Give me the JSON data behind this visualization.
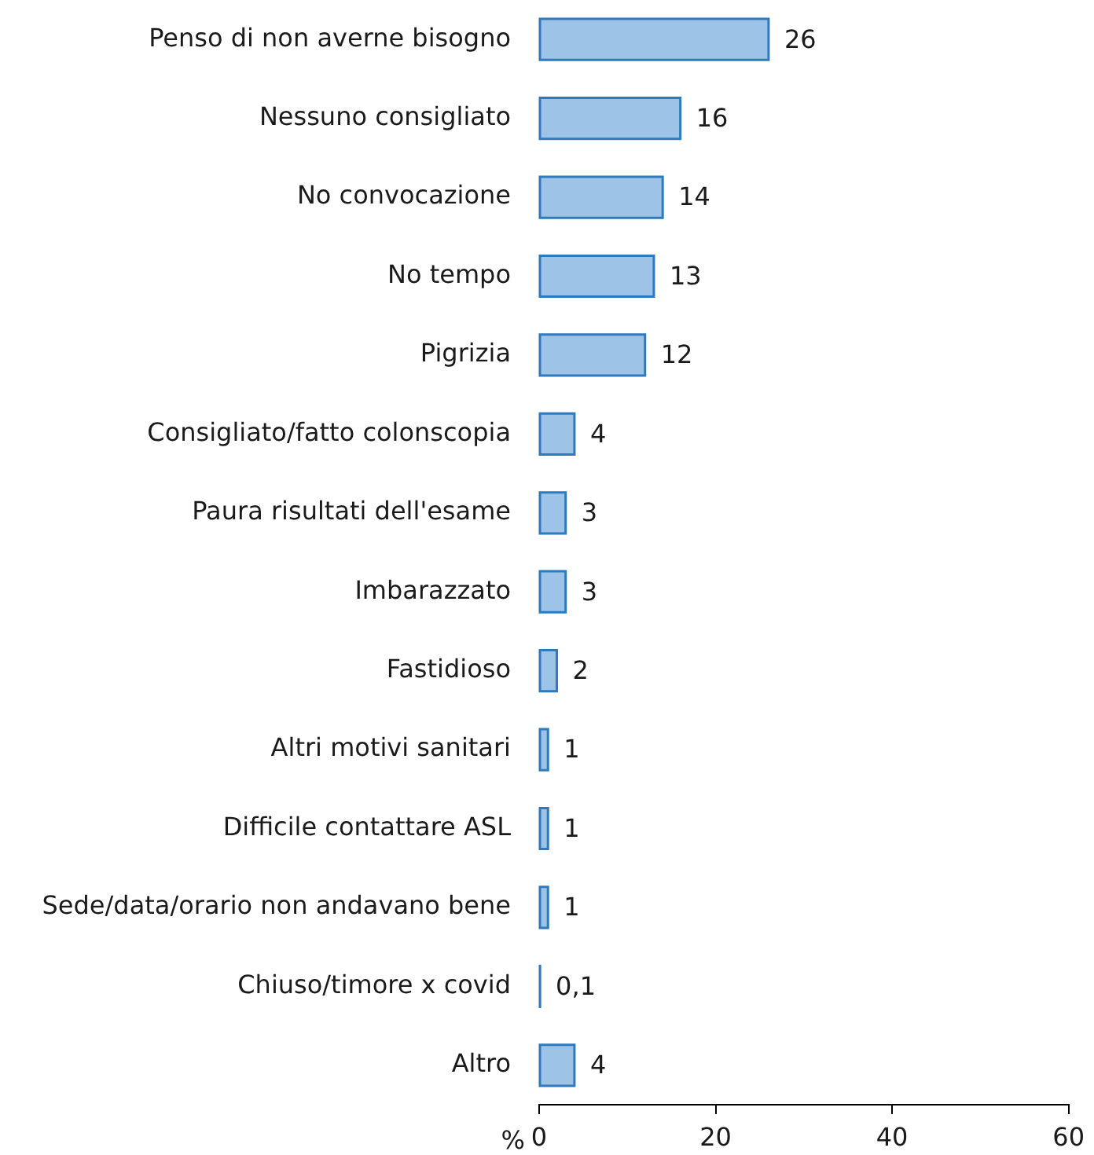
{
  "chart_data": {
    "type": "bar",
    "orientation": "horizontal",
    "xlabel": "%",
    "categories": [
      "Penso di non averne bisogno",
      "Nessuno consigliato",
      "No convocazione",
      "No tempo",
      "Pigrizia",
      "Consigliato/fatto colonscopia",
      "Paura risultati dell'esame",
      "Imbarazzato",
      "Fastidioso",
      "Altri motivi sanitari",
      "Difficile contattare ASL",
      "Sede/data/orario non andavano bene",
      "Chiuso/timore x covid",
      "Altro"
    ],
    "values": [
      26,
      16,
      14,
      13,
      12,
      4,
      3,
      3,
      2,
      1,
      1,
      1,
      0.1,
      4
    ],
    "value_labels": [
      "26",
      "16",
      "14",
      "13",
      "12",
      "4",
      "3",
      "3",
      "2",
      "1",
      "1",
      "1",
      "0,1",
      "4"
    ],
    "color": "#9dc3e6",
    "xlim": [
      0,
      60
    ],
    "xticks": [
      0,
      20,
      40,
      60
    ],
    "grid": false
  }
}
